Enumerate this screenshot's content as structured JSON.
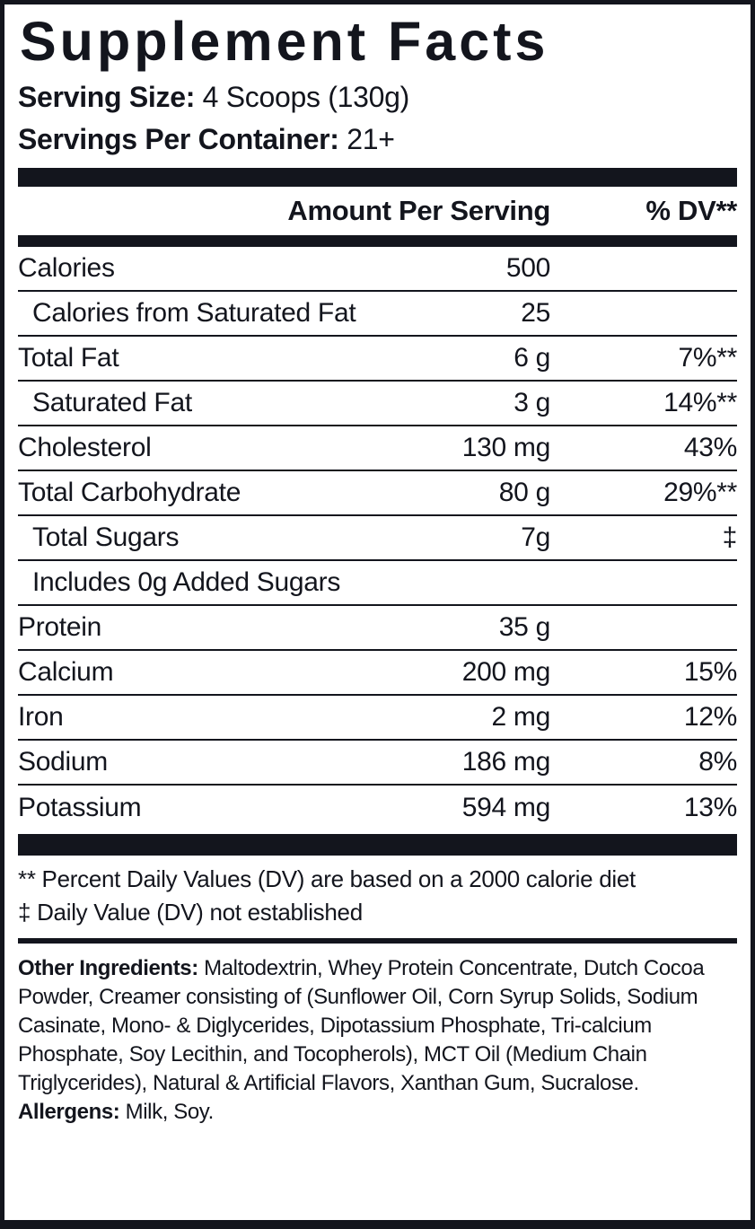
{
  "label": {
    "title": "Supplement Facts",
    "serving_size_label": "Serving Size:",
    "serving_size_value": " 4 Scoops (130g)",
    "servings_per_container_label": "Servings Per Container:",
    "servings_per_container_value": " 21+",
    "header": {
      "amount": "Amount Per Serving",
      "dv": "% DV**"
    },
    "rows": [
      {
        "name": "Calories",
        "amount": "500",
        "dv": ""
      },
      {
        "name": "Calories from Saturated Fat",
        "amount": "25",
        "dv": ""
      },
      {
        "name": "Total Fat",
        "amount": "6 g",
        "dv": "7%**"
      },
      {
        "name": "Saturated Fat",
        "amount": "3 g",
        "dv": "14%**"
      },
      {
        "name": "Cholesterol",
        "amount": "130 mg",
        "dv": "43%"
      },
      {
        "name": "Total Carbohydrate",
        "amount": "80 g",
        "dv": "29%**"
      },
      {
        "name": "Total Sugars",
        "amount": "7g",
        "dv": "‡"
      },
      {
        "name": "Includes 0g Added Sugars",
        "amount": "",
        "dv": ""
      },
      {
        "name": "Protein",
        "amount": "35 g",
        "dv": ""
      },
      {
        "name": "Calcium",
        "amount": "200 mg",
        "dv": "15%"
      },
      {
        "name": "Iron",
        "amount": "2 mg",
        "dv": "12%"
      },
      {
        "name": "Sodium",
        "amount": "186 mg",
        "dv": "8%"
      },
      {
        "name": "Potassium",
        "amount": "594 mg",
        "dv": "13%"
      }
    ],
    "footnotes": {
      "line1": "** Percent Daily Values (DV) are based on a 2000 calorie diet",
      "line2": "‡ Daily Value (DV) not established"
    },
    "other_ingredients_label": "Other Ingredients:",
    "other_ingredients_text": " Maltodextrin, Whey Protein Concentrate, Dutch Cocoa Powder, Creamer consisting of (Sunflower Oil, Corn Syrup Solids, Sodium Casinate, Mono- & Diglycerides, Dipotassium Phosphate, Tri-calcium Phosphate, Soy Lecithin, and Tocopherols), MCT Oil (Medium Chain Triglycerides), Natural & Artificial Flavors, Xanthan Gum, Sucralose.",
    "allergens_label": "Allergens:",
    "allergens_value": " Milk, Soy.",
    "colors": {
      "ink": "#13151d",
      "background": "#ffffff"
    }
  }
}
